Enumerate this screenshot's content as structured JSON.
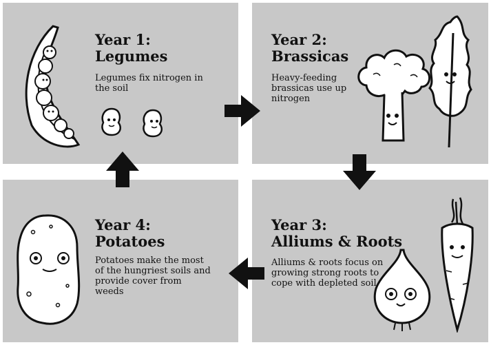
{
  "year1": {
    "title_line1": "Year 1:",
    "title_line2": "Legumes",
    "description": "Legumes fix nitrogen in the soil"
  },
  "year2": {
    "title_line1": "Year 2:",
    "title_line2": "Brassicas",
    "description": "Heavy-feeding brassicas use up nitrogen"
  },
  "year3": {
    "title_line1": "Year 3:",
    "title_line2": "Alliums & Roots",
    "description": "Alliums & roots focus on growing strong roots to cope with depleted soil"
  },
  "year4": {
    "title_line1": "Year 4:",
    "title_line2": "Potatoes",
    "description": "Potatoes make the most of the hungriest soils and provide cover from weeds"
  },
  "colors": {
    "panel": "#c8c8c8",
    "ink": "#111111",
    "background": "#ffffff"
  },
  "icons": [
    "pea-pod-icon",
    "pea-icon",
    "broccoli-icon",
    "kale-icon",
    "onion-icon",
    "carrot-icon",
    "potato-icon",
    "arrow-right-icon",
    "arrow-down-icon",
    "arrow-left-icon",
    "arrow-up-icon"
  ]
}
